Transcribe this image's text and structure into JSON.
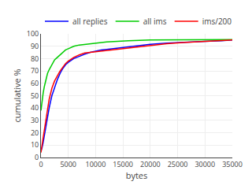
{
  "chart_data": {
    "type": "line",
    "xlabel": "bytes",
    "ylabel": "cumulative %",
    "xlim": [
      0,
      35000
    ],
    "ylim": [
      0,
      100
    ],
    "xticks": [
      0,
      5000,
      10000,
      15000,
      20000,
      25000,
      30000,
      35000
    ],
    "yticks": [
      0,
      10,
      20,
      30,
      40,
      50,
      60,
      70,
      80,
      90,
      100
    ],
    "grid": true,
    "legend": "top-left",
    "series": [
      {
        "name": "all replies",
        "color": "#0000ff",
        "x": [
          0,
          100,
          200,
          400,
          600,
          800,
          1000,
          1200,
          1500,
          2000,
          2500,
          3000,
          3500,
          4000,
          4500,
          5000,
          6000,
          7000,
          8000,
          9000,
          10000,
          11000,
          12000,
          13000,
          14000,
          15000,
          17000,
          20000,
          23000,
          25000,
          28000,
          30000,
          33000,
          35000
        ],
        "values": [
          5,
          6,
          8,
          12,
          17,
          22,
          27,
          33,
          40,
          50,
          57,
          63,
          68,
          72,
          75,
          77,
          80,
          82,
          83.5,
          85,
          86,
          87,
          87.5,
          88,
          88.5,
          89,
          90,
          91.5,
          92.5,
          93,
          93.5,
          94,
          94.5,
          95
        ]
      },
      {
        "name": "all ims",
        "color": "#00cc00",
        "x": [
          0,
          100,
          200,
          400,
          600,
          800,
          1000,
          1200,
          1500,
          2000,
          2500,
          3000,
          3500,
          4000,
          4500,
          5000,
          6000,
          7000,
          8000,
          10000,
          12000,
          14000,
          16000,
          20000,
          25000,
          30000,
          35000
        ],
        "values": [
          38,
          42,
          46,
          52,
          57,
          61,
          65,
          68,
          71,
          75,
          79,
          81,
          83,
          85,
          87,
          88,
          90,
          91,
          91.5,
          92.5,
          93.5,
          94,
          94.5,
          95,
          95.2,
          95.3,
          95.4
        ]
      },
      {
        "name": "ims/200",
        "color": "#ff0000",
        "x": [
          0,
          100,
          200,
          400,
          700,
          1000,
          1200,
          1500,
          2000,
          2500,
          3000,
          3500,
          4000,
          4500,
          5000,
          6000,
          7000,
          8000,
          9000,
          10000,
          11000,
          12000,
          13000,
          14000,
          15000,
          17000,
          20000,
          23000,
          26000,
          30000,
          33000,
          35000
        ],
        "values": [
          4,
          6,
          10,
          16,
          24,
          33,
          40,
          47,
          56,
          62,
          66,
          70,
          73,
          76,
          78,
          81,
          83,
          84.5,
          85,
          85.5,
          86,
          86.5,
          87,
          87.5,
          88,
          89,
          90.5,
          92,
          93,
          94,
          94.5,
          95
        ]
      }
    ]
  }
}
